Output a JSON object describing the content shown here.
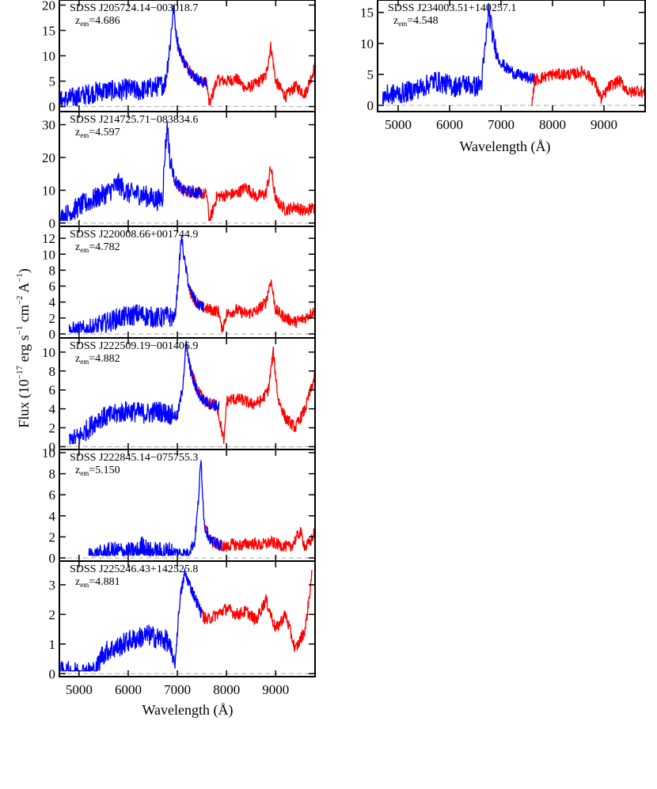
{
  "figure": {
    "ylabel_prefix": "Flux (10",
    "ylabel_exp1": "−17",
    "ylabel_mid1": " erg s",
    "ylabel_exp2": "−1",
    "ylabel_mid2": " cm",
    "ylabel_exp3": "−2",
    "ylabel_mid3": " A",
    "ylabel_exp4": "−1",
    "ylabel_suffix": ")",
    "xlabel": "Wavelength (Å)",
    "colors": {
      "blue_series": "#0000ff",
      "red_series": "#ff0000",
      "zero_line": "#aaaaaa",
      "axis": "#000000"
    }
  },
  "chart_data": [
    {
      "type": "line",
      "name": "SDSS J205724.14−003018.7",
      "zem_label": "z",
      "zem_sub": "em",
      "zem_value": "=4.686",
      "xlim": [
        4600,
        9800
      ],
      "ylim": [
        -1,
        21
      ],
      "yticks": [
        0,
        5,
        10,
        15,
        20
      ],
      "xticks": [
        5000,
        6000,
        7000,
        8000,
        9000
      ],
      "show_xtick_labels": false,
      "series": [
        {
          "color": "blue",
          "x": [
            4600,
            4800,
            5000,
            5200,
            5400,
            5600,
            5800,
            6000,
            6200,
            6400,
            6600,
            6750,
            6850,
            6920,
            6980,
            7050,
            7150,
            7300,
            7450,
            7600
          ],
          "y": [
            1.0,
            1.5,
            2.0,
            2.5,
            3.0,
            3.2,
            3.0,
            3.5,
            3.0,
            3.5,
            4.0,
            4.5,
            12.0,
            19.5,
            14.0,
            11.0,
            8.5,
            6.5,
            5.0,
            4.6
          ]
        },
        {
          "color": "red",
          "x": [
            7000,
            7150,
            7300,
            7450,
            7600,
            7650,
            7800,
            8000,
            8200,
            8400,
            8600,
            8800,
            8900,
            9000,
            9200,
            9400,
            9600,
            9800
          ],
          "y": [
            11.5,
            8.5,
            6.2,
            5.2,
            4.6,
            0.2,
            5.2,
            5.0,
            5.5,
            3.5,
            4.5,
            6.0,
            12.0,
            5.0,
            2.0,
            4.0,
            2.5,
            8.0
          ]
        }
      ]
    },
    {
      "type": "line",
      "name": "SDSS J214725.71−083834.6",
      "zem_label": "z",
      "zem_sub": "em",
      "zem_value": "=4.597",
      "xlim": [
        4600,
        9800
      ],
      "ylim": [
        -1,
        34
      ],
      "yticks": [
        0,
        10,
        20,
        30
      ],
      "xticks": [
        5000,
        6000,
        7000,
        8000,
        9000
      ],
      "show_xtick_labels": false,
      "series": [
        {
          "color": "blue",
          "x": [
            4600,
            4800,
            5000,
            5200,
            5400,
            5600,
            5800,
            6000,
            6200,
            6400,
            6600,
            6700,
            6750,
            6800,
            6850,
            6950,
            7100,
            7300,
            7500
          ],
          "y": [
            1.0,
            3.0,
            5.0,
            6.5,
            8.0,
            9.5,
            12.0,
            9.0,
            9.0,
            8.0,
            7.0,
            8.0,
            22.0,
            30.0,
            19.0,
            13.0,
            10.0,
            9.5,
            9.0
          ]
        },
        {
          "color": "red",
          "x": [
            6950,
            7100,
            7300,
            7500,
            7600,
            7650,
            7800,
            8000,
            8200,
            8400,
            8600,
            8800,
            8900,
            9000,
            9200,
            9400,
            9600,
            9800
          ],
          "y": [
            13.0,
            10.0,
            9.5,
            9.0,
            8.5,
            0.2,
            8.0,
            8.5,
            9.0,
            11.0,
            8.0,
            9.0,
            17.0,
            7.0,
            4.0,
            5.0,
            3.5,
            5.0
          ]
        }
      ]
    },
    {
      "type": "line",
      "name": "SDSS J220008.66+001744.9",
      "zem_label": "z",
      "zem_sub": "em",
      "zem_value": "=4.782",
      "xlim": [
        4600,
        9800
      ],
      "ylim": [
        -0.5,
        13.5
      ],
      "yticks": [
        0,
        2,
        4,
        6,
        8,
        10,
        12
      ],
      "xticks": [
        5000,
        6000,
        7000,
        8000,
        9000
      ],
      "show_xtick_labels": false,
      "series": [
        {
          "color": "blue",
          "x": [
            4800,
            5000,
            5200,
            5400,
            5600,
            5800,
            6000,
            6200,
            6400,
            6600,
            6800,
            6950,
            7020,
            7080,
            7150,
            7250,
            7400,
            7550
          ],
          "y": [
            0.2,
            0.3,
            0.5,
            1.0,
            1.5,
            2.0,
            2.2,
            2.5,
            2.2,
            2.0,
            2.2,
            2.0,
            7.0,
            12.3,
            9.0,
            5.5,
            3.8,
            3.2
          ]
        },
        {
          "color": "red",
          "x": [
            7250,
            7400,
            7550,
            7700,
            7850,
            7900,
            8000,
            8200,
            8400,
            8600,
            8800,
            8900,
            9000,
            9200,
            9400,
            9600,
            9800
          ],
          "y": [
            5.5,
            3.8,
            3.2,
            3.0,
            2.8,
            0.3,
            2.5,
            3.0,
            2.5,
            2.8,
            4.0,
            6.8,
            3.0,
            2.0,
            1.5,
            2.0,
            3.0
          ]
        }
      ]
    },
    {
      "type": "line",
      "name": "SDSS J222509.19−001406.9",
      "zem_label": "z",
      "zem_sub": "em",
      "zem_value": "=4.882",
      "xlim": [
        4600,
        9800
      ],
      "ylim": [
        -0.3,
        11.5
      ],
      "yticks": [
        0,
        2,
        4,
        6,
        8,
        10
      ],
      "xticks": [
        5000,
        6000,
        7000,
        8000,
        9000
      ],
      "show_xtick_labels": false,
      "series": [
        {
          "color": "blue",
          "x": [
            4800,
            5000,
            5200,
            5400,
            5600,
            5800,
            6000,
            6200,
            6400,
            6600,
            6800,
            7000,
            7100,
            7180,
            7250,
            7350,
            7500,
            7700,
            7850
          ],
          "y": [
            0.5,
            1.0,
            2.0,
            3.0,
            3.2,
            3.5,
            3.8,
            3.6,
            3.5,
            3.8,
            3.5,
            3.2,
            6.0,
            10.8,
            8.5,
            6.5,
            5.0,
            4.5,
            4.2
          ]
        },
        {
          "color": "red",
          "x": [
            7250,
            7400,
            7600,
            7800,
            7950,
            8000,
            8100,
            8300,
            8500,
            8700,
            8850,
            8950,
            9050,
            9200,
            9400,
            9600,
            9800
          ],
          "y": [
            8.5,
            6.0,
            4.5,
            4.5,
            0.4,
            4.8,
            5.0,
            5.0,
            4.5,
            4.8,
            6.0,
            10.0,
            5.0,
            3.0,
            2.0,
            4.0,
            7.5
          ]
        }
      ]
    },
    {
      "type": "line",
      "name": "SDSS J222845.14−075755.3",
      "zem_label": "z",
      "zem_sub": "em",
      "zem_value": "=5.150",
      "xlim": [
        4600,
        9800
      ],
      "ylim": [
        -0.3,
        10.3
      ],
      "yticks": [
        0,
        2,
        4,
        6,
        8,
        10
      ],
      "xticks": [
        5000,
        6000,
        7000,
        8000,
        9000
      ],
      "show_xtick_labels": false,
      "series": [
        {
          "color": "blue",
          "x": [
            5200,
            5400,
            5600,
            5800,
            6000,
            6200,
            6300,
            6400,
            6600,
            6800,
            7000,
            7200,
            7350,
            7420,
            7480,
            7550,
            7700,
            7900
          ],
          "y": [
            0.1,
            0.2,
            0.5,
            0.6,
            0.5,
            0.6,
            1.3,
            0.6,
            0.5,
            0.6,
            0.5,
            0.4,
            1.5,
            5.0,
            9.3,
            3.0,
            1.5,
            1.2
          ]
        },
        {
          "color": "red",
          "x": [
            7550,
            7700,
            7900,
            8000,
            8100,
            8300,
            8500,
            8700,
            8900,
            9100,
            9300,
            9500,
            9600,
            9700,
            9800
          ],
          "y": [
            3.0,
            1.5,
            1.2,
            1.0,
            1.3,
            1.2,
            1.4,
            1.2,
            1.5,
            1.2,
            1.0,
            2.5,
            1.0,
            1.5,
            2.5
          ]
        }
      ]
    },
    {
      "type": "line",
      "name": "SDSS J225246.43+142525.8",
      "zem_label": "z",
      "zem_sub": "em",
      "zem_value": "=4.881",
      "xlim": [
        4600,
        9800
      ],
      "ylim": [
        -0.1,
        3.8
      ],
      "yticks": [
        0,
        1,
        2,
        3
      ],
      "xticks": [
        5000,
        6000,
        7000,
        8000,
        9000
      ],
      "show_xtick_labels": true,
      "series": [
        {
          "color": "blue",
          "x": [
            4600,
            4800,
            5000,
            5200,
            5350,
            5450,
            5600,
            5800,
            6000,
            6200,
            6400,
            6600,
            6800,
            6950,
            7050,
            7150,
            7250,
            7400,
            7500
          ],
          "y": [
            0.05,
            0.05,
            0.05,
            0.05,
            0.1,
            0.6,
            0.8,
            0.9,
            1.1,
            1.2,
            1.3,
            1.2,
            1.1,
            0.3,
            2.5,
            3.4,
            3.0,
            2.4,
            2.0
          ]
        },
        {
          "color": "red",
          "x": [
            7500,
            7600,
            7800,
            8000,
            8200,
            8400,
            8600,
            8800,
            9000,
            9200,
            9400,
            9600,
            9750
          ],
          "y": [
            2.0,
            1.8,
            2.0,
            2.2,
            2.0,
            2.1,
            1.8,
            2.5,
            1.5,
            2.0,
            0.8,
            1.5,
            3.5
          ]
        }
      ]
    },
    {
      "type": "line",
      "name": "SDSS J234003.51+140257.1",
      "zem_label": "z",
      "zem_sub": "em",
      "zem_value": "=4.548",
      "xlim": [
        4600,
        9800
      ],
      "ylim": [
        -1,
        17
      ],
      "yticks": [
        0,
        5,
        10,
        15
      ],
      "xticks": [
        5000,
        6000,
        7000,
        8000,
        9000
      ],
      "show_xtick_labels": true,
      "series": [
        {
          "color": "blue",
          "x": [
            4700,
            4900,
            5100,
            5300,
            5500,
            5700,
            5900,
            6100,
            6300,
            6500,
            6620,
            6700,
            6760,
            6850,
            6950,
            7100,
            7300,
            7500,
            7650
          ],
          "y": [
            1.5,
            1.8,
            2.0,
            2.5,
            3.0,
            4.0,
            3.5,
            3.0,
            3.5,
            3.0,
            3.5,
            10.0,
            15.5,
            10.5,
            7.5,
            6.0,
            5.0,
            4.5,
            4.2
          ]
        },
        {
          "color": "red",
          "x": [
            7600,
            7650,
            7800,
            8000,
            8200,
            8400,
            8600,
            8800,
            8950,
            9100,
            9300,
            9500,
            9650,
            9800
          ],
          "y": [
            0.3,
            4.0,
            4.5,
            5.0,
            5.0,
            5.0,
            5.5,
            4.0,
            1.0,
            3.0,
            4.0,
            2.0,
            2.5,
            2.0
          ]
        }
      ]
    }
  ]
}
